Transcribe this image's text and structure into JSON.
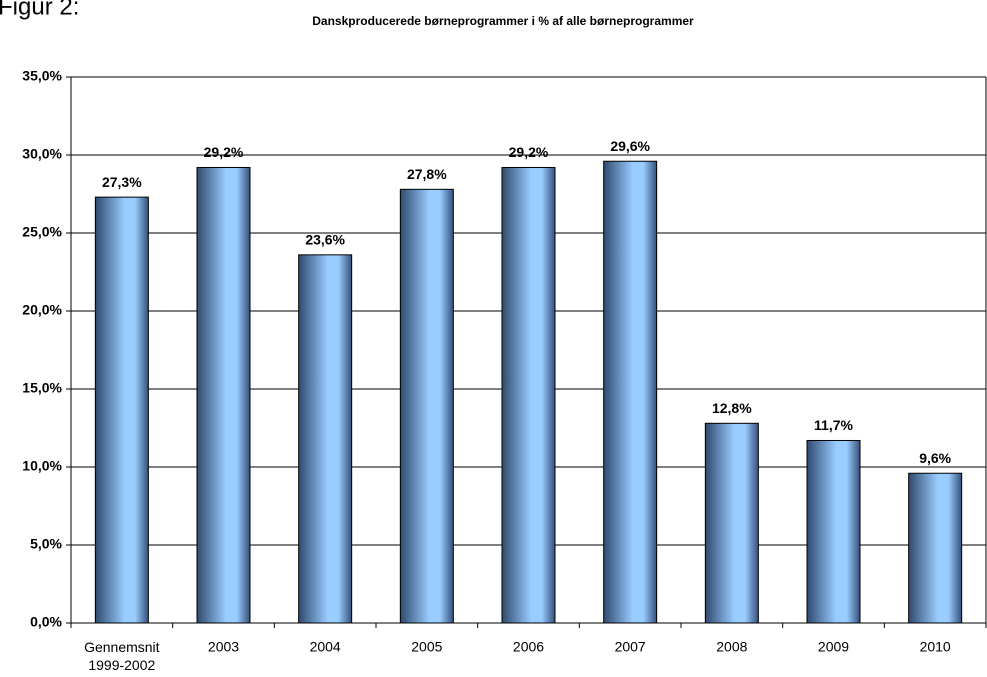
{
  "chart_data": {
    "type": "bar",
    "heading": "Figur 2:",
    "title": "Danskproducerede børneprogrammer i % af alle børneprogrammer",
    "categories": [
      "Gennemsnit\n1999-2002",
      "2003",
      "2004",
      "2005",
      "2006",
      "2007",
      "2008",
      "2009",
      "2010"
    ],
    "values": [
      27.3,
      29.2,
      23.6,
      27.8,
      29.2,
      29.6,
      12.8,
      11.7,
      9.6
    ],
    "value_labels": [
      "27,3%",
      "29,2%",
      "23,6%",
      "27,8%",
      "29,2%",
      "29,6%",
      "12,8%",
      "11,7%",
      "9,6%"
    ],
    "color": "#99ccff",
    "ylim": [
      0,
      35
    ],
    "yticks": [
      {
        "value": 0,
        "label": "0,0%"
      },
      {
        "value": 5,
        "label": "5,0%"
      },
      {
        "value": 10,
        "label": "10,0%"
      },
      {
        "value": 15,
        "label": "15,0%"
      },
      {
        "value": 20,
        "label": "20,0%"
      },
      {
        "value": 25,
        "label": "25,0%"
      },
      {
        "value": 30,
        "label": "30,0%"
      },
      {
        "value": 35,
        "label": "35,0%"
      }
    ],
    "grid": true
  }
}
